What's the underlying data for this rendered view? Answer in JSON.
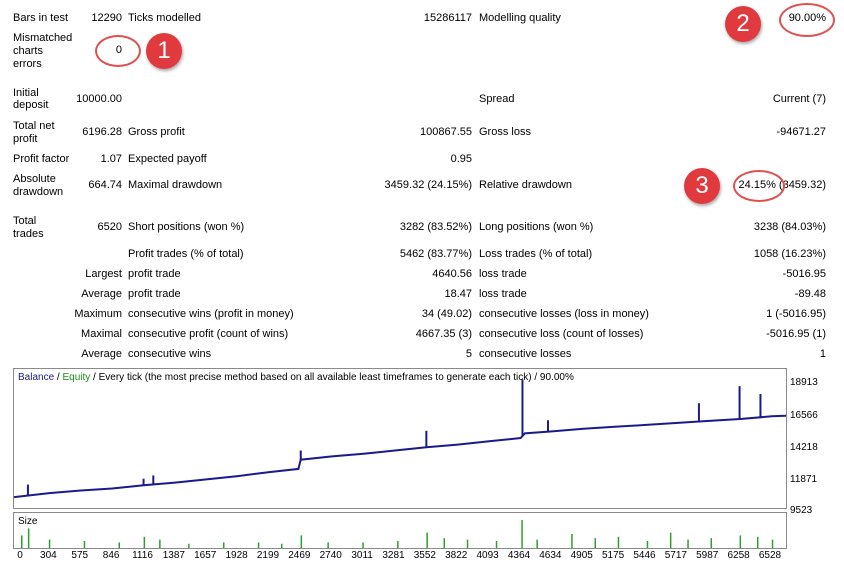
{
  "report": {
    "bars_in_test_label": "Bars in test",
    "bars_in_test_value": "12290",
    "ticks_modelled_label": "Ticks modelled",
    "ticks_modelled_value": "15286117",
    "modelling_quality_label": "Modelling quality",
    "modelling_quality_value": "90.00%",
    "mismatched_label_1": "Mismatched",
    "mismatched_label_2": "charts",
    "mismatched_label_3": "errors",
    "mismatched_value": "0",
    "initial_deposit_label_1": "Initial",
    "initial_deposit_label_2": "deposit",
    "initial_deposit_value": "10000.00",
    "spread_label": "Spread",
    "spread_value": "Current (7)",
    "total_net_profit_label_1": "Total net",
    "total_net_profit_label_2": "profit",
    "total_net_profit_value": "6196.28",
    "gross_profit_label": "Gross profit",
    "gross_profit_value": "100867.55",
    "gross_loss_label": "Gross loss",
    "gross_loss_value": "-94671.27",
    "profit_factor_label": "Profit factor",
    "profit_factor_value": "1.07",
    "expected_payoff_label": "Expected payoff",
    "expected_payoff_value": "0.95",
    "absolute_drawdown_label_1": "Absolute",
    "absolute_drawdown_label_2": "drawdown",
    "absolute_drawdown_value": "664.74",
    "maximal_drawdown_label": "Maximal drawdown",
    "maximal_drawdown_value": "3459.32 (24.15%)",
    "relative_drawdown_label": "Relative drawdown",
    "relative_drawdown_value": "24.15% (3459.32)",
    "total_trades_label_1": "Total",
    "total_trades_label_2": "trades",
    "total_trades_value": "6520",
    "short_positions_label": "Short positions (won %)",
    "short_positions_value": "3282 (83.52%)",
    "long_positions_label": "Long positions (won %)",
    "long_positions_value": "3238 (84.03%)",
    "profit_trades_label": "Profit trades (% of total)",
    "profit_trades_value": "5462 (83.77%)",
    "loss_trades_label": "Loss trades (% of total)",
    "loss_trades_value": "1058 (16.23%)",
    "largest_label": "Largest",
    "largest_profit_label": "profit trade",
    "largest_profit_value": "4640.56",
    "largest_loss_label": "loss trade",
    "largest_loss_value": "-5016.95",
    "average_label": "Average",
    "average_profit_label": "profit trade",
    "average_profit_value": "18.47",
    "average_loss_label": "loss trade",
    "average_loss_value": "-89.48",
    "maximum_label": "Maximum",
    "max_cons_wins_label": "consecutive wins (profit in money)",
    "max_cons_wins_value": "34 (49.02)",
    "max_cons_losses_label": "consecutive losses (loss in money)",
    "max_cons_losses_value": "1 (-5016.95)",
    "maximal_label": "Maximal",
    "maximal_cons_profit_label": "consecutive profit (count of wins)",
    "maximal_cons_profit_value": "4667.35 (3)",
    "maximal_cons_loss_label": "consecutive loss (count of losses)",
    "maximal_cons_loss_value": "-5016.95 (1)",
    "average2_label": "Average",
    "avg_cons_wins_label": "consecutive wins",
    "avg_cons_wins_value": "5",
    "avg_cons_losses_label": "consecutive losses",
    "avg_cons_losses_value": "1"
  },
  "annotations": {
    "badge_1": "1",
    "badge_2": "2",
    "badge_3": "3"
  },
  "chart": {
    "title_balance": "Balance",
    "title_sep1": " / ",
    "title_equity": "Equity",
    "title_rest": " / Every tick (the most precise method based on all available least timeframes to generate each tick) / 90.00%",
    "size_label": "Size",
    "balance_color": "#1a1a8c",
    "equity_color": "#1a8c1a",
    "volume_color": "#2ca02c"
  },
  "chart_data": {
    "type": "line",
    "title": "Balance / Equity / Every tick (the most precise method based on all available least timeframes to generate each tick) / 90.00%",
    "xlabel": "",
    "ylabel": "",
    "x_ticks": [
      "0",
      "304",
      "575",
      "846",
      "1116",
      "1387",
      "1657",
      "1928",
      "2199",
      "2469",
      "2740",
      "3011",
      "3281",
      "3552",
      "3822",
      "4093",
      "4364",
      "4634",
      "4905",
      "5175",
      "5446",
      "5717",
      "5987",
      "6258",
      "6528"
    ],
    "y_ticks": [
      "18913",
      "16566",
      "14218",
      "11871",
      "9523"
    ],
    "xlim": [
      0,
      6650
    ],
    "ylim": [
      9523,
      19500
    ],
    "series": [
      {
        "name": "Balance",
        "x": [
          0,
          304,
          575,
          846,
          1116,
          1387,
          1657,
          1928,
          2199,
          2450,
          2470,
          2740,
          3011,
          3281,
          3552,
          3822,
          4093,
          4364,
          4400,
          4634,
          4905,
          5175,
          5446,
          5717,
          5987,
          6258,
          6528,
          6650
        ],
        "values": [
          10050,
          10350,
          10550,
          10700,
          10950,
          11150,
          11400,
          11650,
          11950,
          12200,
          12900,
          13150,
          13350,
          13600,
          13850,
          14050,
          14300,
          14550,
          14900,
          15050,
          15250,
          15400,
          15550,
          15700,
          15850,
          16000,
          16200,
          16250
        ]
      },
      {
        "name": "Equity",
        "spikes": [
          {
            "x": 120,
            "value": 11000
          },
          {
            "x": 1116,
            "value": 11450
          },
          {
            "x": 1200,
            "value": 11700
          },
          {
            "x": 2470,
            "value": 13600
          },
          {
            "x": 3552,
            "value": 15100
          },
          {
            "x": 4380,
            "value": 19000
          },
          {
            "x": 4600,
            "value": 15900
          },
          {
            "x": 5900,
            "value": 17200
          },
          {
            "x": 6250,
            "value": 18500
          },
          {
            "x": 6430,
            "value": 17900
          }
        ]
      }
    ],
    "volume": {
      "name": "Size",
      "x": [
        60,
        120,
        300,
        600,
        900,
        1116,
        1250,
        1500,
        1800,
        2100,
        2300,
        2469,
        2700,
        3000,
        3300,
        3552,
        3700,
        3900,
        4150,
        4370,
        4500,
        4800,
        5000,
        5200,
        5450,
        5650,
        5800,
        6000,
        6250,
        6400,
        6528
      ],
      "values": [
        0.45,
        0.7,
        0.3,
        0.25,
        0.2,
        0.4,
        0.3,
        0.15,
        0.2,
        0.2,
        0.15,
        0.45,
        0.2,
        0.2,
        0.25,
        0.55,
        0.35,
        0.3,
        0.25,
        1.0,
        0.3,
        0.5,
        0.35,
        0.4,
        0.25,
        0.55,
        0.3,
        0.35,
        0.45,
        0.4,
        0.3
      ]
    }
  }
}
